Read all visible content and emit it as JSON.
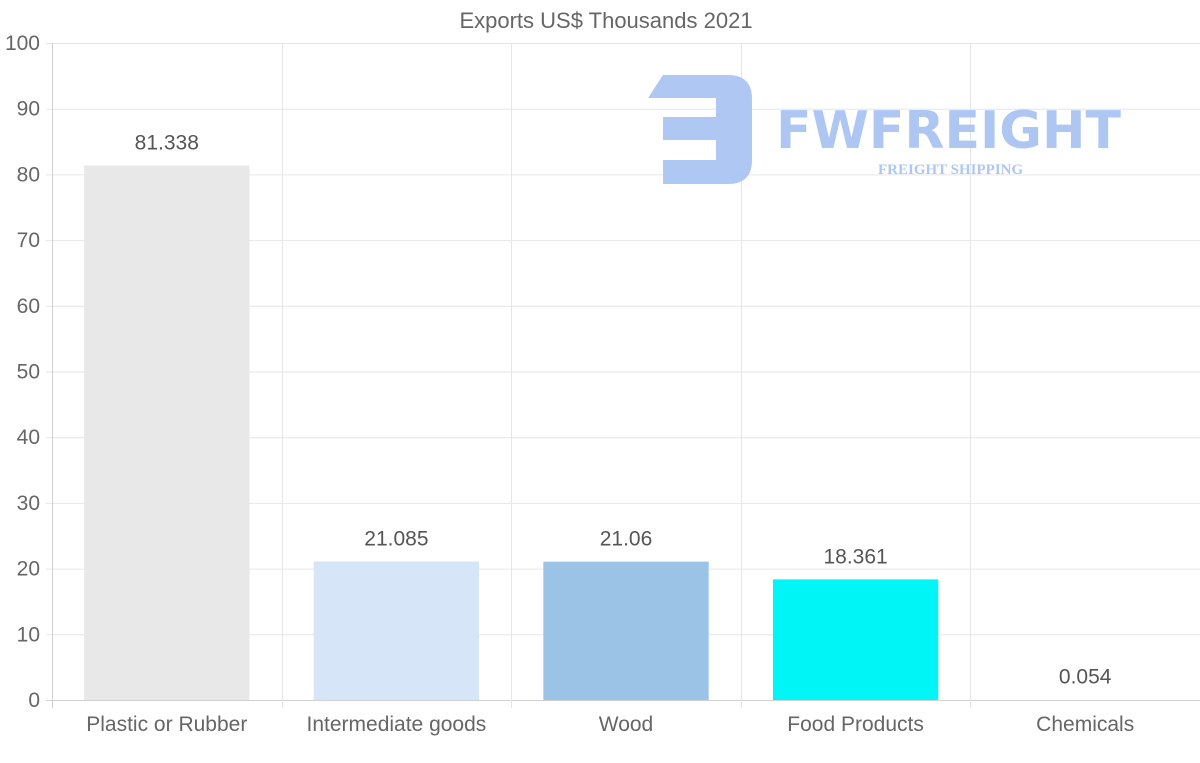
{
  "chart_data": {
    "type": "bar",
    "title": "Exports US$ Thousands 2021",
    "categories": [
      "Plastic or Rubber",
      "Intermediate goods",
      "Wood",
      "Food Products",
      "Chemicals"
    ],
    "values": [
      81.338,
      21.085,
      21.06,
      18.361,
      0.054
    ],
    "data_labels": [
      "81.338",
      "21.085",
      "21.06",
      "18.361",
      "0.054"
    ],
    "colors": [
      "#e8e8e8",
      "#d6e6f8",
      "#9ac3e6",
      "#00f6f6",
      "#ffffff"
    ],
    "ylim": [
      0,
      100
    ],
    "yticks": [
      0,
      10,
      20,
      30,
      40,
      50,
      60,
      70,
      80,
      90,
      100
    ],
    "xlabel": "",
    "ylabel": "",
    "grid": true
  },
  "watermark": {
    "brand": "FWFREIGHT",
    "tagline": "FREIGHT SHIPPING",
    "color": "#aac4f2"
  }
}
